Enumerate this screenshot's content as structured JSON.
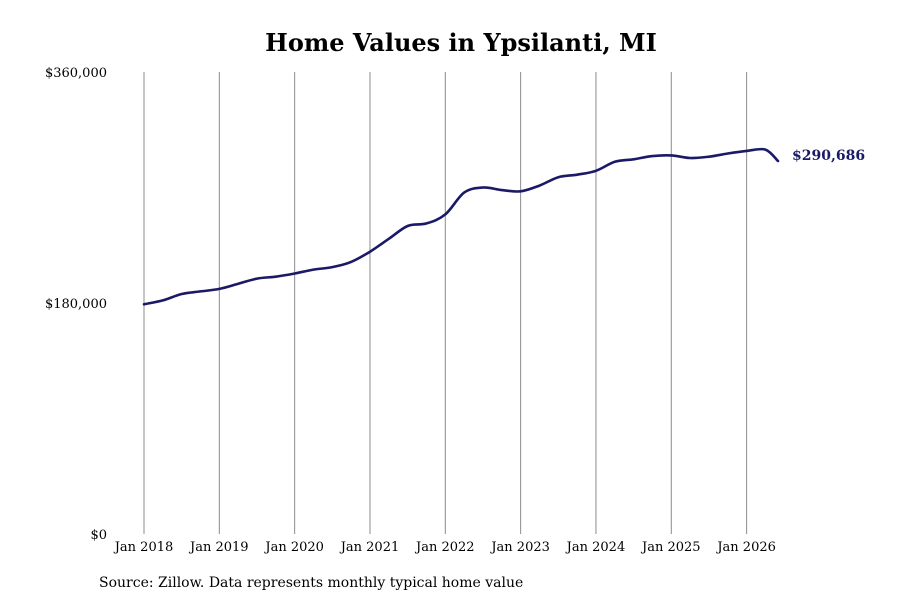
{
  "chart_data": {
    "type": "line",
    "title": "Home Values in Ypsilanti, MI",
    "xlabel": "",
    "ylabel": "",
    "ylim": [
      0,
      360000
    ],
    "y_ticks": [
      "$0",
      "$180,000",
      "$360,000"
    ],
    "x_ticks": [
      "Jan 2018",
      "Jan 2019",
      "Jan 2020",
      "Jan 2021",
      "Jan 2022",
      "Jan 2023",
      "Jan 2024",
      "Jan 2025",
      "Jan 2026"
    ],
    "x_range": [
      "2018-01",
      "2026-06"
    ],
    "grid": "vertical",
    "line_color": "#1a1a66",
    "series": [
      {
        "x": [
          "2018-01",
          "2018-04",
          "2018-07",
          "2018-10",
          "2019-01",
          "2019-04",
          "2019-07",
          "2019-10",
          "2020-01",
          "2020-04",
          "2020-07",
          "2020-10",
          "2021-01",
          "2021-04",
          "2021-07",
          "2021-10",
          "2022-01",
          "2022-04",
          "2022-07",
          "2022-10",
          "2023-01",
          "2023-04",
          "2023-07",
          "2023-10",
          "2024-01",
          "2024-04",
          "2024-07",
          "2024-10",
          "2025-01",
          "2025-04",
          "2025-07",
          "2025-10",
          "2026-01",
          "2026-04",
          "2026-06"
        ],
        "values": [
          179000,
          182000,
          187000,
          189000,
          191000,
          195000,
          199000,
          200500,
          203000,
          206000,
          208000,
          212000,
          220000,
          230000,
          240000,
          242000,
          249000,
          266000,
          270000,
          268000,
          267000,
          271500,
          278000,
          280000,
          283000,
          290000,
          292000,
          294500,
          295000,
          293000,
          294000,
          296500,
          298500,
          299500,
          290686
        ]
      }
    ],
    "end_label": "$290,686",
    "source": "Source: Zillow. Data represents monthly typical home value"
  }
}
